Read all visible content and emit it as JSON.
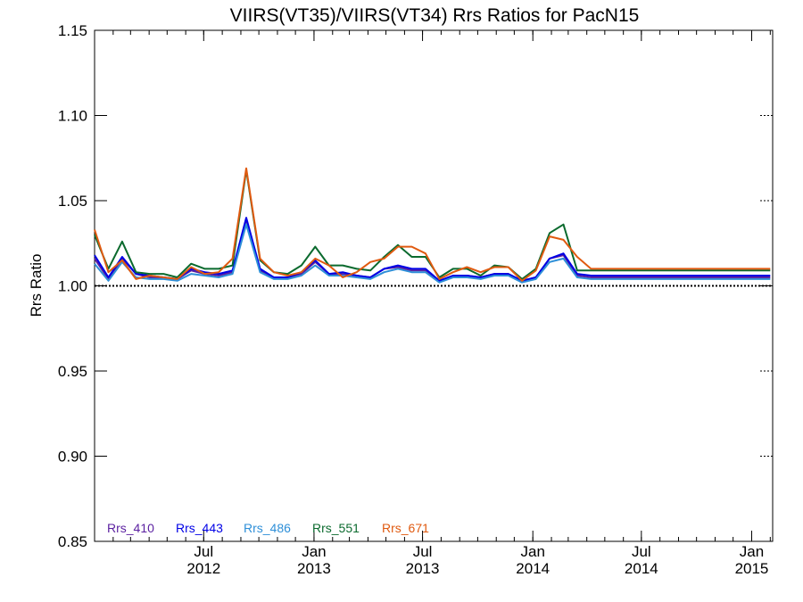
{
  "chart_data": {
    "type": "line",
    "title": "VIIRS(VT35)/VIIRS(VT34)  Rrs Ratios for PacN15",
    "xlabel": "",
    "ylabel": "Rrs Ratio",
    "ylim": [
      0.85,
      1.15
    ],
    "yticks": [
      "0.85",
      "0.90",
      "0.95",
      "1.00",
      "1.05",
      "1.10",
      "1.15"
    ],
    "xlim": [
      "2012-01-01",
      "2015-02-05"
    ],
    "xticks": [
      {
        "date": "2012-07-01",
        "month": "Jul",
        "year": "2012"
      },
      {
        "date": "2013-01-01",
        "month": "Jan",
        "year": "2013"
      },
      {
        "date": "2013-07-01",
        "month": "Jul",
        "year": "2013"
      },
      {
        "date": "2014-01-01",
        "month": "Jan",
        "year": "2014"
      },
      {
        "date": "2014-07-01",
        "month": "Jul",
        "year": "2014"
      },
      {
        "date": "2015-01-01",
        "month": "Jan",
        "year": "2015"
      }
    ],
    "reference_line": 1.0,
    "legend_position": "bottom-left",
    "x": [
      "2012-01-01",
      "2012-01-24",
      "2012-02-16",
      "2012-03-10",
      "2012-04-02",
      "2012-04-25",
      "2012-05-18",
      "2012-06-10",
      "2012-07-03",
      "2012-07-26",
      "2012-08-18",
      "2012-09-10",
      "2012-10-03",
      "2012-10-26",
      "2012-11-18",
      "2012-12-11",
      "2013-01-03",
      "2013-01-26",
      "2013-02-18",
      "2013-03-13",
      "2013-04-05",
      "2013-04-28",
      "2013-05-21",
      "2013-06-13",
      "2013-07-06",
      "2013-07-29",
      "2013-08-21",
      "2013-09-13",
      "2013-10-06",
      "2013-10-29",
      "2013-11-21",
      "2013-12-14",
      "2014-01-06",
      "2014-01-29",
      "2014-02-21",
      "2014-03-16",
      "2014-04-08",
      "2014-05-01",
      "2014-05-24",
      "2014-06-16",
      "2014-07-09",
      "2014-08-01",
      "2014-08-24",
      "2014-09-16",
      "2014-10-09",
      "2014-11-01",
      "2014-11-24",
      "2014-12-17",
      "2015-01-09",
      "2015-02-01"
    ],
    "series": [
      {
        "name": "Rrs_410",
        "color": "#5a1fa0",
        "values": [
          1.016,
          1.004,
          1.016,
          1.007,
          1.005,
          1.005,
          1.004,
          1.009,
          1.007,
          1.006,
          1.008,
          1.039,
          1.009,
          1.005,
          1.005,
          1.007,
          1.014,
          1.007,
          1.007,
          1.006,
          1.005,
          1.01,
          1.011,
          1.009,
          1.009,
          1.003,
          1.006,
          1.006,
          1.005,
          1.007,
          1.007,
          1.003,
          1.005,
          1.016,
          1.018,
          1.006,
          1.005,
          1.005,
          1.005,
          1.005,
          1.005,
          1.005,
          1.005,
          1.005,
          1.005,
          1.005,
          1.005,
          1.005,
          1.005,
          1.005
        ]
      },
      {
        "name": "Rrs_443",
        "color": "#0000e6",
        "values": [
          1.018,
          1.005,
          1.017,
          1.007,
          1.006,
          1.005,
          1.004,
          1.01,
          1.008,
          1.007,
          1.009,
          1.04,
          1.01,
          1.005,
          1.005,
          1.008,
          1.015,
          1.007,
          1.008,
          1.006,
          1.005,
          1.01,
          1.012,
          1.01,
          1.01,
          1.003,
          1.006,
          1.006,
          1.005,
          1.007,
          1.007,
          1.003,
          1.005,
          1.016,
          1.019,
          1.007,
          1.006,
          1.006,
          1.006,
          1.006,
          1.006,
          1.006,
          1.006,
          1.006,
          1.006,
          1.006,
          1.006,
          1.006,
          1.006,
          1.006
        ]
      },
      {
        "name": "Rrs_486",
        "color": "#2e8fd8",
        "values": [
          1.013,
          1.003,
          1.014,
          1.005,
          1.004,
          1.004,
          1.003,
          1.007,
          1.006,
          1.005,
          1.007,
          1.036,
          1.008,
          1.004,
          1.004,
          1.006,
          1.012,
          1.006,
          1.006,
          1.005,
          1.004,
          1.008,
          1.01,
          1.008,
          1.008,
          1.002,
          1.005,
          1.005,
          1.004,
          1.006,
          1.006,
          1.002,
          1.004,
          1.014,
          1.016,
          1.005,
          1.004,
          1.004,
          1.004,
          1.004,
          1.004,
          1.004,
          1.004,
          1.004,
          1.004,
          1.004,
          1.004,
          1.004,
          1.004,
          1.004
        ]
      },
      {
        "name": "Rrs_551",
        "color": "#0b6a2e",
        "values": [
          1.03,
          1.01,
          1.026,
          1.008,
          1.007,
          1.007,
          1.005,
          1.013,
          1.01,
          1.01,
          1.012,
          1.068,
          1.015,
          1.008,
          1.007,
          1.012,
          1.023,
          1.012,
          1.012,
          1.01,
          1.009,
          1.017,
          1.024,
          1.017,
          1.017,
          1.005,
          1.01,
          1.01,
          1.006,
          1.012,
          1.011,
          1.004,
          1.01,
          1.031,
          1.036,
          1.009,
          1.009,
          1.009,
          1.009,
          1.009,
          1.009,
          1.009,
          1.009,
          1.009,
          1.009,
          1.009,
          1.009,
          1.009,
          1.009,
          1.009
        ]
      },
      {
        "name": "Rrs_671",
        "color": "#e05a10",
        "values": [
          1.033,
          1.008,
          1.015,
          1.004,
          1.006,
          1.005,
          1.004,
          1.011,
          1.007,
          1.008,
          1.016,
          1.069,
          1.016,
          1.008,
          1.006,
          1.008,
          1.016,
          1.012,
          1.005,
          1.008,
          1.014,
          1.016,
          1.023,
          1.023,
          1.019,
          1.004,
          1.008,
          1.011,
          1.008,
          1.011,
          1.011,
          1.003,
          1.009,
          1.029,
          1.027,
          1.017,
          1.01,
          1.01,
          1.01,
          1.01,
          1.01,
          1.01,
          1.01,
          1.01,
          1.01,
          1.01,
          1.01,
          1.01,
          1.01,
          1.01
        ]
      }
    ]
  }
}
